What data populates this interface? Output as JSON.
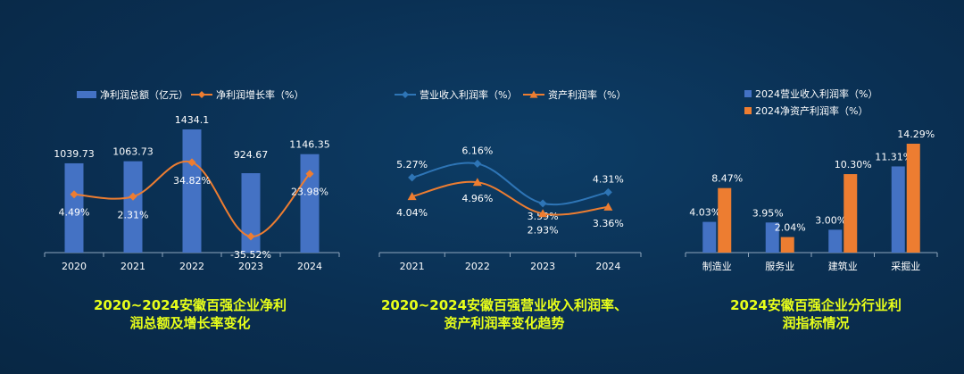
{
  "chart_data": [
    {
      "type": "bar+line",
      "caption": [
        "2020~2024安徽百强企业净利",
        "润总额及增长率变化"
      ],
      "categories": [
        "2020",
        "2021",
        "2022",
        "2023",
        "2024"
      ],
      "series": [
        {
          "name": "净利润总额（亿元）",
          "kind": "bar",
          "color": "#4472c4",
          "values": [
            1039.73,
            1063.73,
            1434.1,
            924.67,
            1146.35
          ],
          "labels": [
            "1039.73",
            "1063.73",
            "1434.1",
            "924.67",
            "1146.35"
          ]
        },
        {
          "name": "净利润增长率（%）",
          "kind": "line",
          "color": "#ed7d31",
          "values": [
            4.49,
            2.31,
            34.82,
            -35.52,
            23.98
          ],
          "labels": [
            "4.49%",
            "2.31%",
            "34.82%",
            "-35.52%",
            "23.98%"
          ]
        }
      ]
    },
    {
      "type": "line",
      "caption": [
        "2020~2024安徽百强营业收入利润率、",
        "资产利润率变化趋势"
      ],
      "categories": [
        "2021",
        "2022",
        "2023",
        "2024"
      ],
      "series": [
        {
          "name": "营业收入利润率（%）",
          "color": "#2e75b6",
          "marker": "diamond",
          "values": [
            5.27,
            6.16,
            3.59,
            4.31
          ],
          "labels": [
            "5.27%",
            "6.16%",
            "3.59%",
            "4.31%"
          ]
        },
        {
          "name": "资产利润率（%）",
          "color": "#ed7d31",
          "marker": "triangle",
          "values": [
            4.04,
            4.96,
            2.93,
            3.36
          ],
          "labels": [
            "4.04%",
            "4.96%",
            "2.93%",
            "3.36%"
          ]
        }
      ]
    },
    {
      "type": "bar",
      "caption": [
        "2024安徽百强企业分行业利",
        "润指标情况"
      ],
      "categories": [
        "制造业",
        "服务业",
        "建筑业",
        "采掘业"
      ],
      "series": [
        {
          "name": "2024营业收入利润率（%）",
          "color": "#4472c4",
          "values": [
            4.03,
            3.95,
            3.0,
            11.31
          ],
          "labels": [
            "4.03%",
            "3.95%",
            "3.00%",
            "11.31%"
          ]
        },
        {
          "name": "2024净资产利润率（%）",
          "color": "#ed7d31",
          "values": [
            8.47,
            2.04,
            10.3,
            14.29
          ],
          "labels": [
            "8.47%",
            "2.04%",
            "10.30%",
            "14.29%"
          ]
        }
      ]
    }
  ]
}
